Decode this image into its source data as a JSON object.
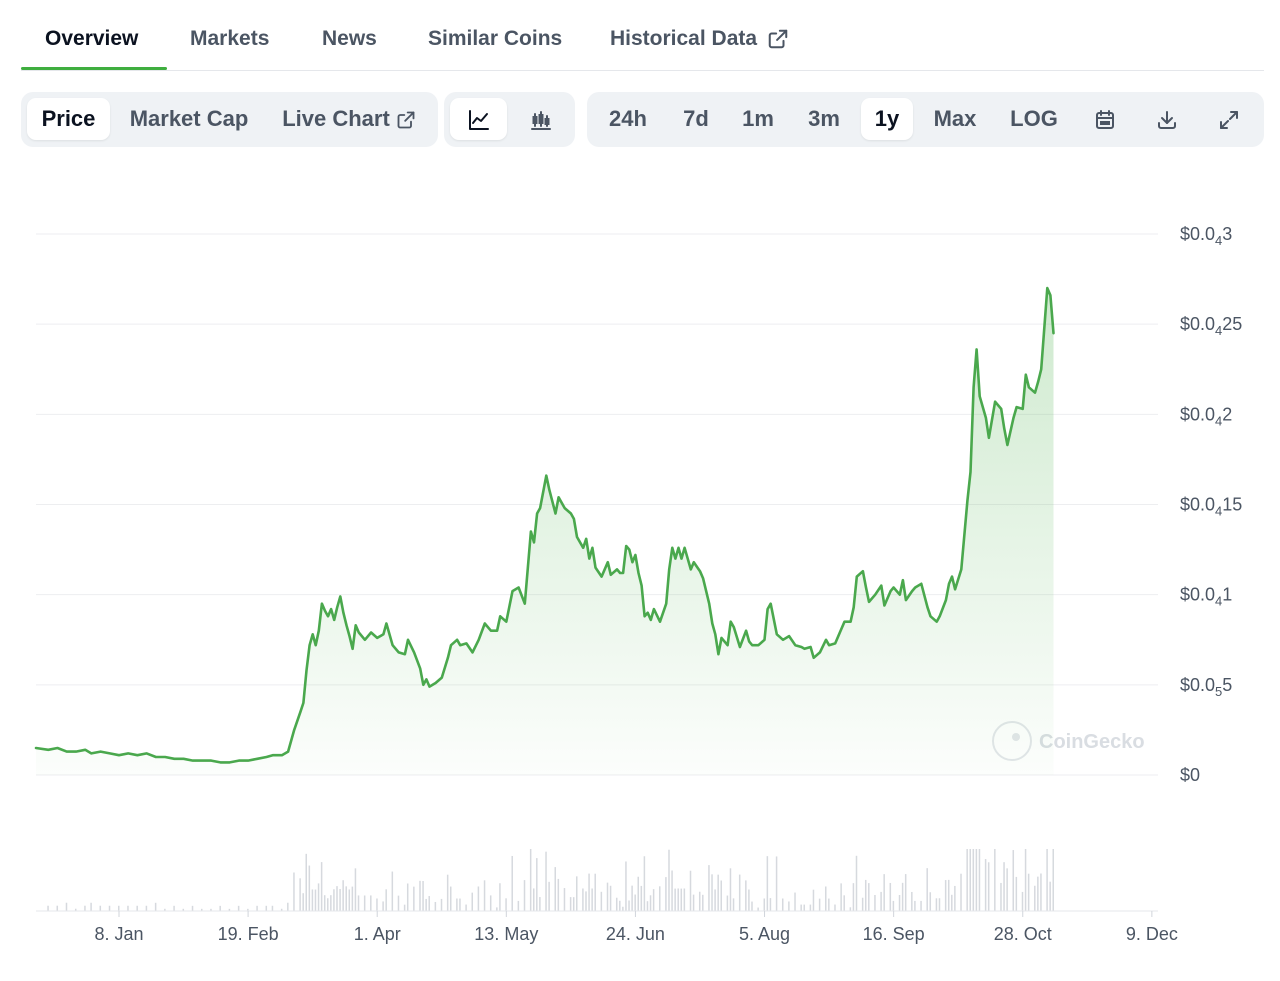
{
  "tabs": [
    {
      "label": "Overview",
      "active": true
    },
    {
      "label": "Markets"
    },
    {
      "label": "News"
    },
    {
      "label": "Similar Coins"
    },
    {
      "label": "Historical Data",
      "icon": "external-link-icon"
    }
  ],
  "toolbar": {
    "data_type": [
      {
        "label": "Price",
        "active": true
      },
      {
        "label": "Market Cap"
      },
      {
        "label": "Live Chart",
        "icon": "external-link-icon"
      }
    ],
    "chart_style": [
      {
        "icon": "line-chart-icon",
        "active": true
      },
      {
        "icon": "candlestick-chart-icon"
      }
    ],
    "ranges": [
      {
        "label": "24h"
      },
      {
        "label": "7d"
      },
      {
        "label": "1m"
      },
      {
        "label": "3m"
      },
      {
        "label": "1y",
        "active": true
      },
      {
        "label": "Max"
      },
      {
        "label": "LOG"
      }
    ],
    "actions": [
      {
        "icon": "calendar-icon"
      },
      {
        "icon": "download-icon"
      },
      {
        "icon": "expand-icon"
      }
    ]
  },
  "watermark": "CoinGecko",
  "colors": {
    "line": "#4aa84d",
    "fill": "#5cb85c",
    "grid": "#edeef0",
    "active_tab_underline": "#3fae3f"
  },
  "chart_data": {
    "type": "area",
    "y_unit_note": "price in USD, tick labels use subscript-zero notation",
    "y_ticks": [
      {
        "value": 0,
        "label": "$0",
        "text": "$0",
        "sub": "",
        "rest": ""
      },
      {
        "value": 5e-06,
        "label": "$0.0₅5",
        "text": "$0.0",
        "sub": "5",
        "rest": "5"
      },
      {
        "value": 1e-05,
        "label": "$0.0₄1",
        "text": "$0.0",
        "sub": "4",
        "rest": "1"
      },
      {
        "value": 1.5e-05,
        "label": "$0.0₄15",
        "text": "$0.0",
        "sub": "4",
        "rest": "15"
      },
      {
        "value": 2e-05,
        "label": "$0.0₄2",
        "text": "$0.0",
        "sub": "4",
        "rest": "2"
      },
      {
        "value": 2.5e-05,
        "label": "$0.0₄25",
        "text": "$0.0",
        "sub": "4",
        "rest": "25"
      },
      {
        "value": 3e-05,
        "label": "$0.0₄3",
        "text": "$0.0",
        "sub": "4",
        "rest": "3"
      }
    ],
    "ylim": [
      0,
      3e-05
    ],
    "x_ticks": [
      "8. Jan",
      "19. Feb",
      "1. Apr",
      "13. May",
      "24. Jun",
      "5. Aug",
      "16. Sep",
      "28. Oct",
      "9. Dec"
    ],
    "x_tick_days": [
      7,
      49,
      91,
      133,
      175,
      217,
      259,
      301,
      343
    ],
    "x_range_days": [
      -20,
      345
    ],
    "series": [
      {
        "points": [
          [
            -20,
            1.5e-06
          ],
          [
            -16,
            1.4e-06
          ],
          [
            -13,
            1.5e-06
          ],
          [
            -10,
            1.3e-06
          ],
          [
            -7,
            1.3e-06
          ],
          [
            -4,
            1.4e-06
          ],
          [
            -2,
            1.2e-06
          ],
          [
            1,
            1.3e-06
          ],
          [
            4,
            1.2e-06
          ],
          [
            7,
            1.1e-06
          ],
          [
            10,
            1.2e-06
          ],
          [
            13,
            1.1e-06
          ],
          [
            16,
            1.2e-06
          ],
          [
            19,
            1e-06
          ],
          [
            22,
            1e-06
          ],
          [
            25,
            9e-07
          ],
          [
            28,
            9e-07
          ],
          [
            31,
            8e-07
          ],
          [
            34,
            8e-07
          ],
          [
            37,
            8e-07
          ],
          [
            40,
            7e-07
          ],
          [
            43,
            7e-07
          ],
          [
            46,
            8e-07
          ],
          [
            49,
            8e-07
          ],
          [
            52,
            9e-07
          ],
          [
            55,
            1e-06
          ],
          [
            57,
            1.1e-06
          ],
          [
            60,
            1.1e-06
          ],
          [
            62,
            1.3e-06
          ],
          [
            64,
            2.5e-06
          ],
          [
            66,
            3.5e-06
          ],
          [
            67,
            4e-06
          ],
          [
            68,
            5.8e-06
          ],
          [
            69,
            7.2e-06
          ],
          [
            70,
            7.8e-06
          ],
          [
            71,
            7.2e-06
          ],
          [
            72,
            8e-06
          ],
          [
            73,
            9.5e-06
          ],
          [
            74,
            9.1e-06
          ],
          [
            75,
            8.8e-06
          ],
          [
            76,
            9.2e-06
          ],
          [
            77,
            8.6e-06
          ],
          [
            78,
            9.3e-06
          ],
          [
            79,
            9.9e-06
          ],
          [
            80,
            9e-06
          ],
          [
            81,
            8.3e-06
          ],
          [
            82,
            7.7e-06
          ],
          [
            83,
            7e-06
          ],
          [
            84,
            8.3e-06
          ],
          [
            85,
            7.9e-06
          ],
          [
            87,
            7.5e-06
          ],
          [
            89,
            7.9e-06
          ],
          [
            91,
            7.6e-06
          ],
          [
            93,
            7.8e-06
          ],
          [
            94,
            8.4e-06
          ],
          [
            96,
            7.2e-06
          ],
          [
            98,
            6.8e-06
          ],
          [
            100,
            6.7e-06
          ],
          [
            101,
            7.5e-06
          ],
          [
            103,
            6.8e-06
          ],
          [
            105,
            5.9e-06
          ],
          [
            106,
            5e-06
          ],
          [
            107,
            5.3e-06
          ],
          [
            108,
            4.9e-06
          ],
          [
            110,
            5.1e-06
          ],
          [
            112,
            5.4e-06
          ],
          [
            114,
            6.5e-06
          ],
          [
            115,
            7.2e-06
          ],
          [
            117,
            7.5e-06
          ],
          [
            118,
            7.2e-06
          ],
          [
            120,
            7.3e-06
          ],
          [
            122,
            6.8e-06
          ],
          [
            124,
            7.5e-06
          ],
          [
            126,
            8.4e-06
          ],
          [
            128,
            8e-06
          ],
          [
            130,
            8e-06
          ],
          [
            131,
            8.8e-06
          ],
          [
            133,
            8.5e-06
          ],
          [
            135,
            1.02e-05
          ],
          [
            137,
            1.04e-05
          ],
          [
            139,
            9.5e-06
          ],
          [
            141,
            1.35e-05
          ],
          [
            142,
            1.29e-05
          ],
          [
            143,
            1.45e-05
          ],
          [
            144,
            1.48e-05
          ],
          [
            146,
            1.66e-05
          ],
          [
            147,
            1.58e-05
          ],
          [
            149,
            1.45e-05
          ],
          [
            150,
            1.54e-05
          ],
          [
            152,
            1.48e-05
          ],
          [
            154,
            1.45e-05
          ],
          [
            155,
            1.42e-05
          ],
          [
            156,
            1.32e-05
          ],
          [
            158,
            1.26e-05
          ],
          [
            159,
            1.31e-05
          ],
          [
            160,
            1.2e-05
          ],
          [
            161,
            1.26e-05
          ],
          [
            162,
            1.15e-05
          ],
          [
            164,
            1.1e-05
          ],
          [
            166,
            1.18e-05
          ],
          [
            167,
            1.11e-05
          ],
          [
            169,
            1.14e-05
          ],
          [
            170,
            1.12e-05
          ],
          [
            171,
            1.12e-05
          ],
          [
            172,
            1.27e-05
          ],
          [
            173,
            1.25e-05
          ],
          [
            174,
            1.18e-05
          ],
          [
            175,
            1.22e-05
          ],
          [
            176,
            1.12e-05
          ],
          [
            177,
            1.05e-05
          ],
          [
            178,
            8.8e-06
          ],
          [
            179,
            9e-06
          ],
          [
            180,
            8.6e-06
          ],
          [
            181,
            9.2e-06
          ],
          [
            183,
            8.5e-06
          ],
          [
            185,
            9.5e-06
          ],
          [
            186,
            1.14e-05
          ],
          [
            187,
            1.26e-05
          ],
          [
            188,
            1.2e-05
          ],
          [
            189,
            1.26e-05
          ],
          [
            190,
            1.2e-05
          ],
          [
            191,
            1.26e-05
          ],
          [
            193,
            1.14e-05
          ],
          [
            194,
            1.18e-05
          ],
          [
            196,
            1.13e-05
          ],
          [
            197,
            1.09e-05
          ],
          [
            199,
            9.5e-06
          ],
          [
            200,
            8.4e-06
          ],
          [
            201,
            7.8e-06
          ],
          [
            202,
            6.7e-06
          ],
          [
            203,
            7.6e-06
          ],
          [
            205,
            7.2e-06
          ],
          [
            206,
            8.5e-06
          ],
          [
            207,
            8.2e-06
          ],
          [
            209,
            7.1e-06
          ],
          [
            211,
            8e-06
          ],
          [
            212,
            7.4e-06
          ],
          [
            213,
            7.2e-06
          ],
          [
            215,
            7.2e-06
          ],
          [
            217,
            7.5e-06
          ],
          [
            218,
            9.2e-06
          ],
          [
            219,
            9.5e-06
          ],
          [
            221,
            7.8e-06
          ],
          [
            223,
            7.5e-06
          ],
          [
            225,
            7.7e-06
          ],
          [
            227,
            7.2e-06
          ],
          [
            229,
            7.1e-06
          ],
          [
            230,
            7e-06
          ],
          [
            232,
            7.1e-06
          ],
          [
            233,
            6.5e-06
          ],
          [
            235,
            6.8e-06
          ],
          [
            237,
            7.5e-06
          ],
          [
            238,
            7.2e-06
          ],
          [
            240,
            7.3e-06
          ],
          [
            242,
            8.1e-06
          ],
          [
            243,
            8.5e-06
          ],
          [
            245,
            8.5e-06
          ],
          [
            246,
            9.3e-06
          ],
          [
            247,
            1.1e-05
          ],
          [
            249,
            1.13e-05
          ],
          [
            250,
            1.04e-05
          ],
          [
            251,
            9.6e-06
          ],
          [
            253,
            1e-05
          ],
          [
            255,
            1.05e-05
          ],
          [
            256,
            9.4e-06
          ],
          [
            258,
            1.02e-05
          ],
          [
            259,
            1.04e-05
          ],
          [
            261,
            1e-05
          ],
          [
            262,
            1.08e-05
          ],
          [
            263,
            9.7e-06
          ],
          [
            265,
            1.02e-05
          ],
          [
            266,
            1.04e-05
          ],
          [
            268,
            1.06e-05
          ],
          [
            270,
            9.3e-06
          ],
          [
            271,
            8.8e-06
          ],
          [
            273,
            8.5e-06
          ],
          [
            274,
            8.8e-06
          ],
          [
            276,
            9.7e-06
          ],
          [
            277,
            1.06e-05
          ],
          [
            278,
            1.1e-05
          ],
          [
            279,
            1.03e-05
          ],
          [
            281,
            1.14e-05
          ],
          [
            283,
            1.52e-05
          ],
          [
            284,
            1.68e-05
          ],
          [
            285,
            2.15e-05
          ],
          [
            286,
            2.36e-05
          ],
          [
            287,
            2.1e-05
          ],
          [
            289,
            1.98e-05
          ],
          [
            290,
            1.87e-05
          ],
          [
            292,
            2.07e-05
          ],
          [
            294,
            2.03e-05
          ],
          [
            295,
            1.92e-05
          ],
          [
            296,
            1.83e-05
          ],
          [
            298,
            1.98e-05
          ],
          [
            299,
            2.04e-05
          ],
          [
            301,
            2.03e-05
          ],
          [
            302,
            2.22e-05
          ],
          [
            303,
            2.15e-05
          ],
          [
            305,
            2.12e-05
          ],
          [
            306,
            2.18e-05
          ],
          [
            307,
            2.25e-05
          ],
          [
            309,
            2.7e-05
          ],
          [
            310,
            2.66e-05
          ],
          [
            311,
            2.45e-05
          ]
        ]
      }
    ],
    "volume_note": "small volume bars along the bottom, spike near late Oct–Dec",
    "grid": true,
    "legend": "none"
  }
}
